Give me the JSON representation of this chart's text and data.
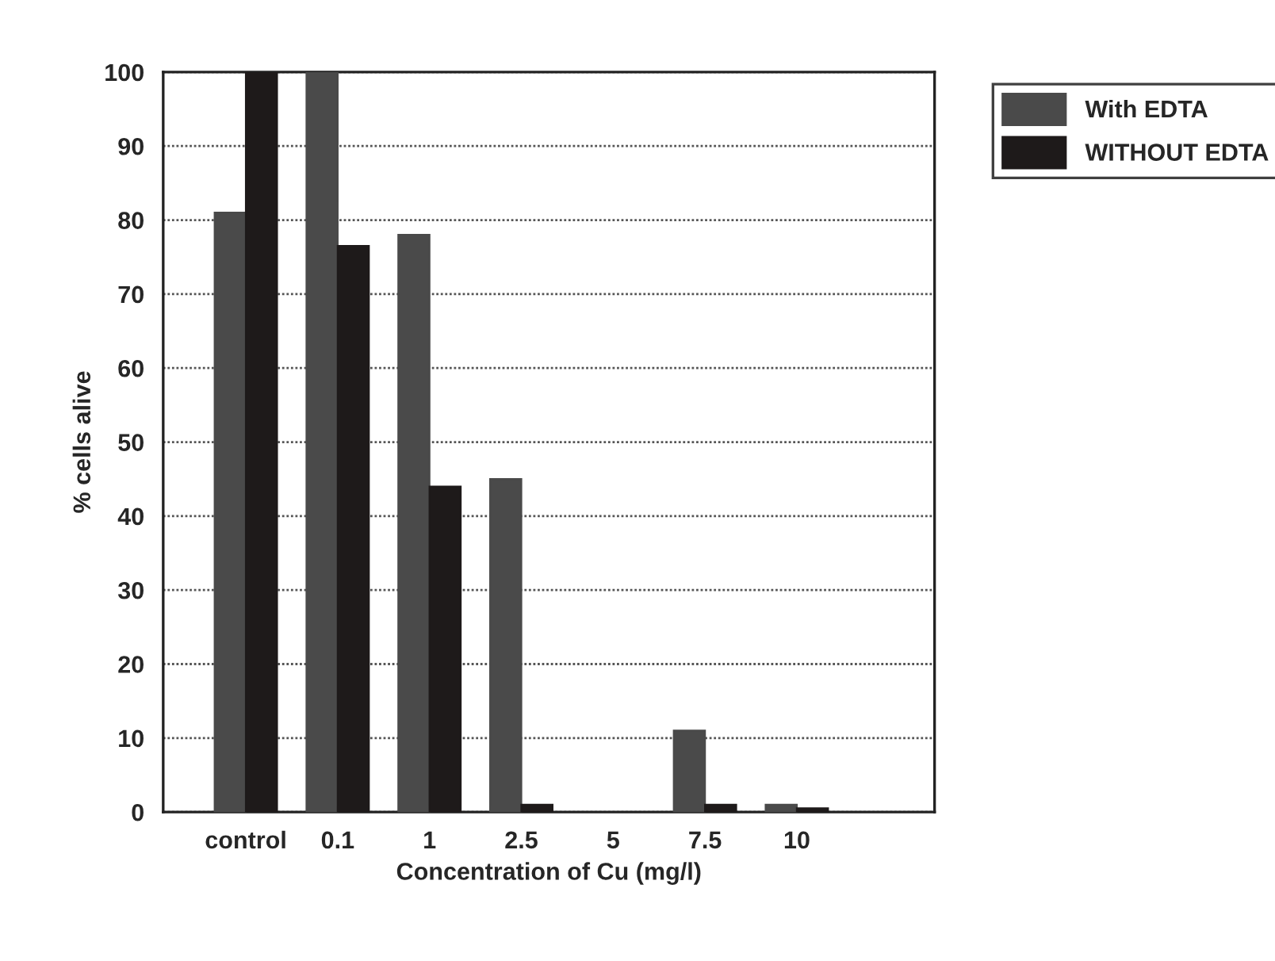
{
  "chart_data": {
    "type": "bar",
    "xlabel": "Concentration of Cu (mg/l)",
    "ylabel": "% cells alive",
    "categories": [
      "control",
      "0.1",
      "1",
      "2.5",
      "5",
      "7.5",
      "10",
      null
    ],
    "series": [
      {
        "name": "With EDTA",
        "color": "#4a4a4a",
        "values": [
          81,
          100,
          78,
          45,
          null,
          11,
          1,
          null
        ]
      },
      {
        "name": "WITHOUT EDTA",
        "color": "#1e1a1a",
        "values": [
          100,
          76.5,
          44,
          1,
          null,
          1,
          0.5,
          null
        ]
      }
    ],
    "ylim": [
      0,
      100
    ],
    "yticks": [
      0,
      10,
      20,
      30,
      40,
      50,
      60,
      70,
      80,
      90,
      100
    ],
    "grid": "y",
    "legend": "top right"
  }
}
